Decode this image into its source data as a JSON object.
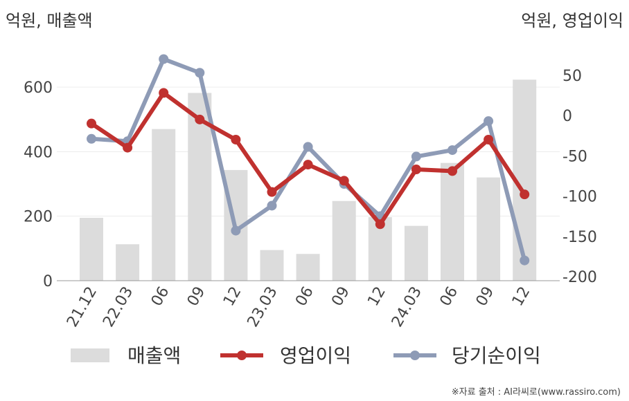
{
  "chart_data": {
    "type": "bar+line",
    "left_axis_label": "억원, 매출액",
    "right_axis_label": "억원, 영업이익",
    "categories": [
      "21.12",
      "22.03",
      "06",
      "09",
      "12",
      "23.03",
      "06",
      "09",
      "12",
      "24.03",
      "06",
      "09",
      "12"
    ],
    "y_left": {
      "min": 0,
      "max": 700,
      "ticks": [
        0,
        200,
        400,
        600
      ]
    },
    "y_right": {
      "min": -200,
      "max": 50,
      "ticks": [
        50,
        0,
        -50,
        -100,
        -150,
        -200
      ]
    },
    "series": [
      {
        "name": "매출액",
        "kind": "bar",
        "axis": "left",
        "color": "#dcdcdc",
        "values": [
          195,
          113,
          470,
          582,
          343,
          95,
          83,
          247,
          197,
          170,
          365,
          320,
          623
        ]
      },
      {
        "name": "영업이익",
        "kind": "line",
        "axis": "right",
        "color": "#c0312f",
        "values": [
          -10,
          -40,
          28,
          -5,
          -30,
          -95,
          -61,
          -81,
          -135,
          -67,
          -69,
          -30,
          -98
        ]
      },
      {
        "name": "당기순이익",
        "kind": "line",
        "axis": "right",
        "color": "#8e9bb6",
        "values": [
          -29,
          -32,
          70,
          53,
          -143,
          -112,
          -39,
          -85,
          -125,
          -51,
          -43,
          -7,
          -180
        ]
      }
    ],
    "grid": true,
    "legend_position": "bottom"
  },
  "source": "※자료 출처 : AI라씨로(www.rassiro.com)"
}
